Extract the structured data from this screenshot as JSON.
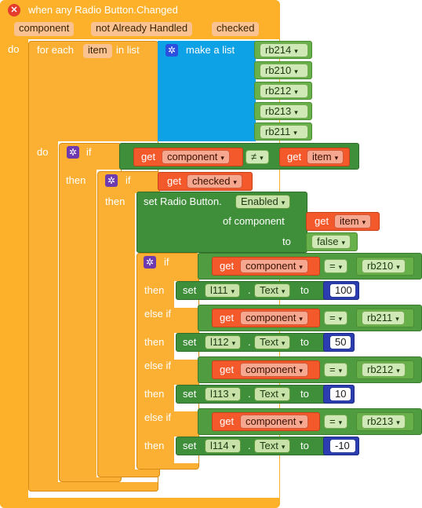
{
  "event": {
    "title": "when any Radio Button.Changed",
    "params": [
      "component",
      "not Already Handled",
      "checked"
    ],
    "do_label": "do"
  },
  "foreach": {
    "label": "for each",
    "var": "item",
    "in_list": "in list",
    "make_list": "make a list",
    "list_items": [
      "rb214",
      "rb210",
      "rb212",
      "rb213",
      "rb211"
    ],
    "do_label": "do"
  },
  "if1": {
    "if_label": "if",
    "get": "get",
    "left": "component",
    "op": "≠",
    "right": "item",
    "then_label": "then"
  },
  "if2": {
    "if_label": "if",
    "get": "get",
    "var": "checked",
    "then_label": "then"
  },
  "set_enabled": {
    "label": "set Radio Button.",
    "prop": "Enabled",
    "of_component": "of component",
    "get": "get",
    "of_var": "item",
    "to_label": "to",
    "value": "false"
  },
  "if3": {
    "if_label": "if",
    "else_if_label": "else if",
    "then_label": "then",
    "get": "get",
    "set": "set",
    "to": "to",
    "dot": ".",
    "op": "=",
    "compare_var": "component",
    "prop": "Text",
    "cases": [
      {
        "rb": "rb210",
        "label": "l111",
        "value": "100"
      },
      {
        "rb": "rb211",
        "label": "l112",
        "value": "50"
      },
      {
        "rb": "rb212",
        "label": "l113",
        "value": "10"
      },
      {
        "rb": "rb213",
        "label": "l114",
        "value": "-10"
      }
    ]
  }
}
